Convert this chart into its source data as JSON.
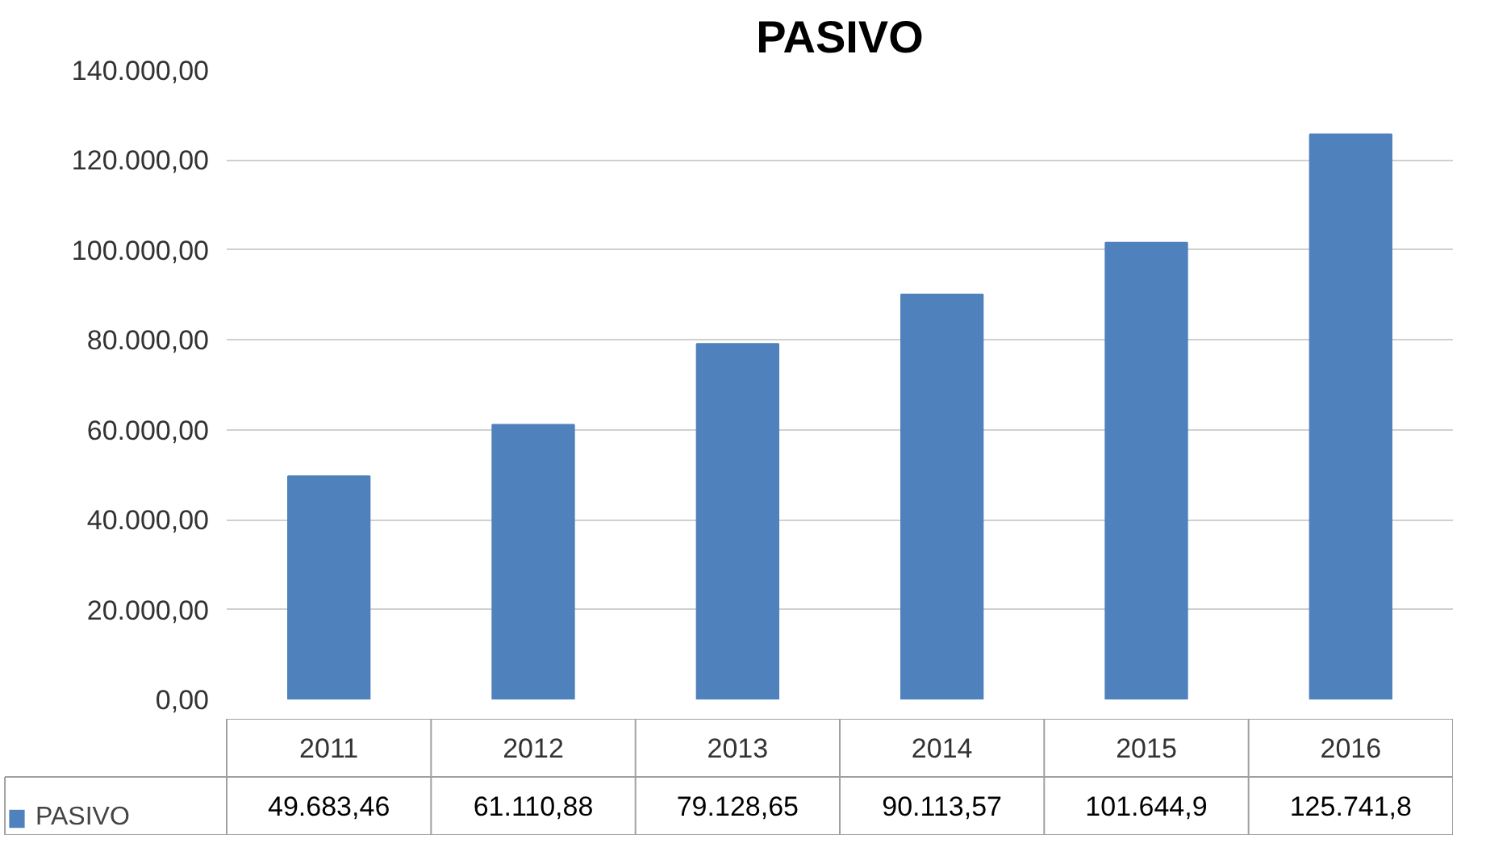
{
  "chart_data": {
    "type": "bar",
    "title": "PASIVO",
    "categories": [
      "2011",
      "2012",
      "2013",
      "2014",
      "2015",
      "2016"
    ],
    "series": [
      {
        "name": "PASIVO",
        "color": "#4f81bd",
        "values": [
          49683.46,
          61110.88,
          79128.65,
          90113.57,
          101644.9,
          125741.8
        ],
        "value_labels": [
          "49.683,46",
          "61.110,88",
          "79.128,65",
          "90.113,57",
          "101.644,9",
          "125.741,8"
        ]
      }
    ],
    "ylim": [
      0,
      140000
    ],
    "yticks": [
      {
        "value": 0,
        "label": "0,00"
      },
      {
        "value": 20000,
        "label": "20.000,00"
      },
      {
        "value": 40000,
        "label": "40.000,00"
      },
      {
        "value": 60000,
        "label": "60.000,00"
      },
      {
        "value": 80000,
        "label": "80.000,00"
      },
      {
        "value": 100000,
        "label": "100.000,00"
      },
      {
        "value": 120000,
        "label": "120.000,00"
      },
      {
        "value": 140000,
        "label": "140.000,00"
      }
    ],
    "grid": "y",
    "legend": "bottom"
  }
}
